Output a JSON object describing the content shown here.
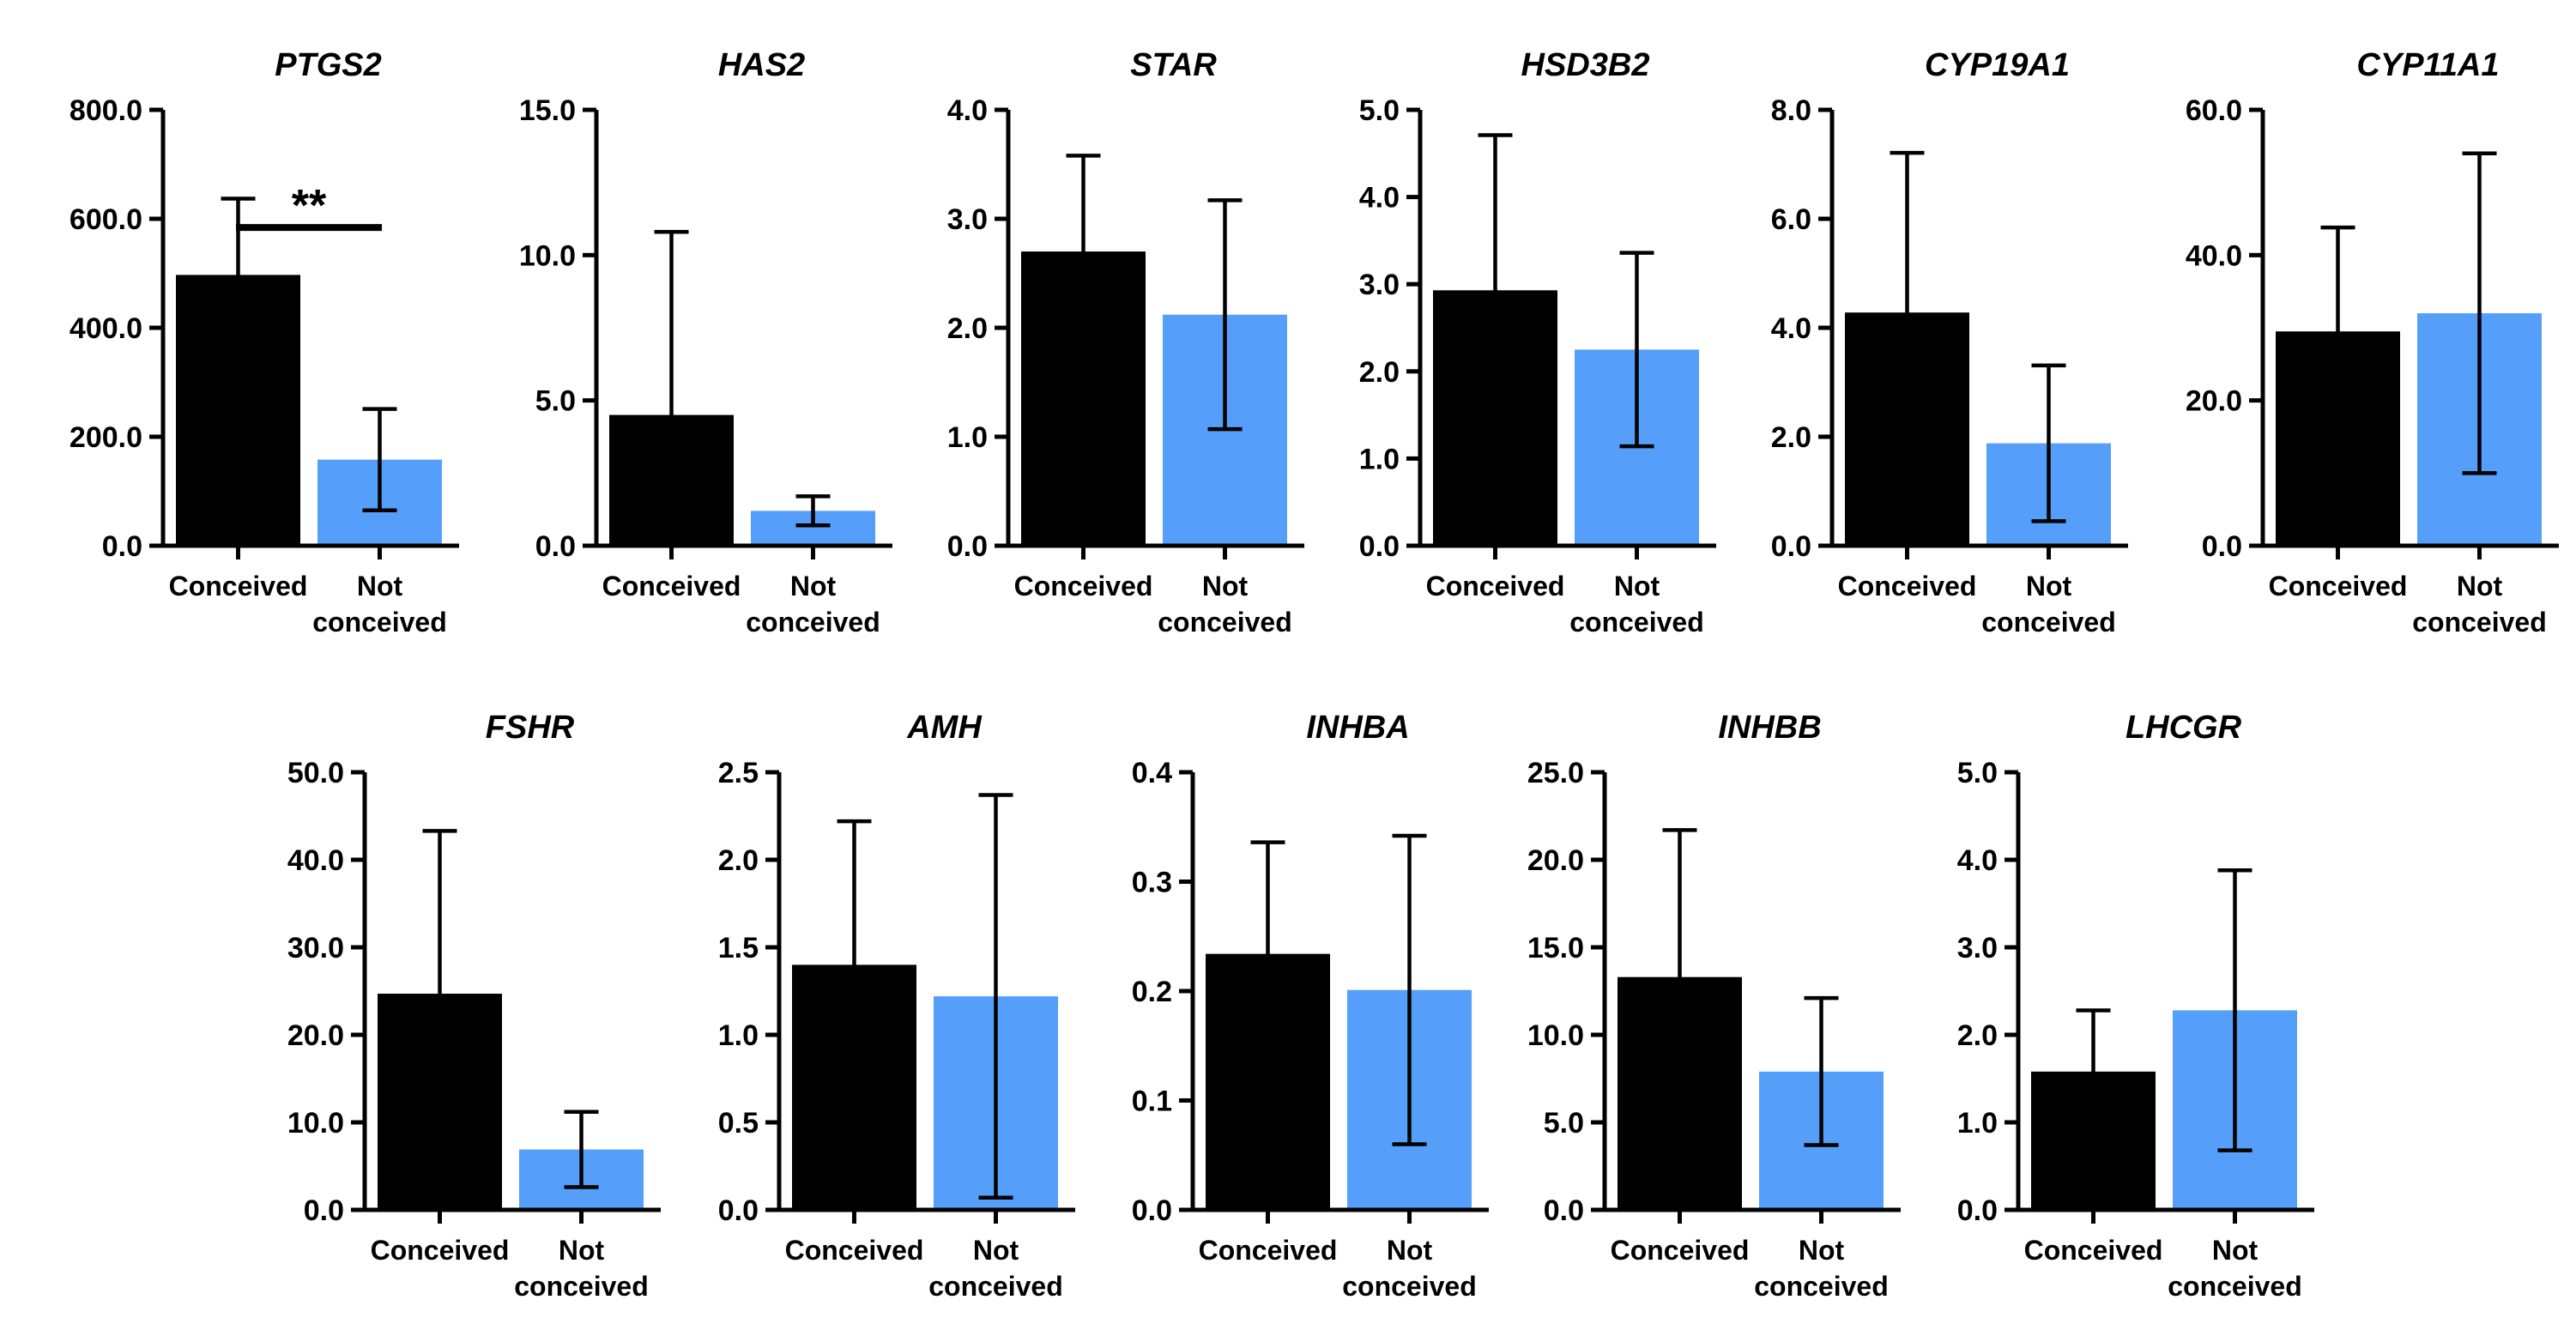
{
  "colors": {
    "conceived": "#000000",
    "not_conceived": "#559ffa"
  },
  "chart_data": [
    {
      "type": "bar",
      "title": "PTGS2",
      "categories": [
        "Conceived",
        "Not|conceived"
      ],
      "series": [
        {
          "values": [
            497,
            158
          ],
          "error": [
            140,
            93
          ]
        }
      ],
      "ylim": [
        0,
        800
      ],
      "yticks": [
        "0.0",
        "200.0",
        "400.0",
        "600.0",
        "800.0"
      ],
      "significance": "**"
    },
    {
      "type": "bar",
      "title": "HAS2",
      "categories": [
        "Conceived",
        "Not|conceived"
      ],
      "series": [
        {
          "values": [
            4.5,
            1.2
          ],
          "error": [
            6.3,
            0.5
          ]
        }
      ],
      "ylim": [
        0,
        15
      ],
      "yticks": [
        "0.0",
        "5.0",
        "10.0",
        "15.0"
      ]
    },
    {
      "type": "bar",
      "title": "STAR",
      "categories": [
        "Conceived",
        "Not|conceived"
      ],
      "series": [
        {
          "values": [
            2.7,
            2.12
          ],
          "error": [
            0.88,
            1.05
          ]
        }
      ],
      "ylim": [
        0,
        4
      ],
      "yticks": [
        "0.0",
        "1.0",
        "2.0",
        "3.0",
        "4.0"
      ]
    },
    {
      "type": "bar",
      "title": "HSD3B2",
      "categories": [
        "Conceived",
        "Not|conceived"
      ],
      "series": [
        {
          "values": [
            2.93,
            2.25
          ],
          "error": [
            1.78,
            1.11
          ]
        }
      ],
      "ylim": [
        0,
        5
      ],
      "yticks": [
        "0.0",
        "1.0",
        "2.0",
        "3.0",
        "4.0",
        "5.0"
      ]
    },
    {
      "type": "bar",
      "title": "CYP19A1",
      "categories": [
        "Conceived",
        "Not|conceived"
      ],
      "series": [
        {
          "values": [
            4.28,
            1.88
          ],
          "error": [
            2.93,
            1.43
          ]
        }
      ],
      "ylim": [
        0,
        8
      ],
      "yticks": [
        "0.0",
        "2.0",
        "4.0",
        "6.0",
        "8.0"
      ]
    },
    {
      "type": "bar",
      "title": "CYP11A1",
      "categories": [
        "Conceived",
        "Not|conceived"
      ],
      "series": [
        {
          "values": [
            29.5,
            32
          ],
          "error": [
            14.3,
            22
          ]
        }
      ],
      "ylim": [
        0,
        60
      ],
      "yticks": [
        "0.0",
        "20.0",
        "40.0",
        "60.0"
      ]
    },
    {
      "type": "bar",
      "title": "FSHR",
      "categories": [
        "Conceived",
        "Not|conceived"
      ],
      "series": [
        {
          "values": [
            24.7,
            6.9
          ],
          "error": [
            18.6,
            4.3
          ]
        }
      ],
      "ylim": [
        0,
        50
      ],
      "yticks": [
        "0.0",
        "10.0",
        "20.0",
        "30.0",
        "40.0",
        "50.0"
      ]
    },
    {
      "type": "bar",
      "title": "AMH",
      "categories": [
        "Conceived",
        "Not|conceived"
      ],
      "series": [
        {
          "values": [
            1.4,
            1.22
          ],
          "error": [
            0.82,
            1.15
          ]
        }
      ],
      "ylim": [
        0,
        2.5
      ],
      "yticks": [
        "0.0",
        "0.5",
        "1.0",
        "1.5",
        "2.0",
        "2.5"
      ]
    },
    {
      "type": "bar",
      "title": "INHBA",
      "categories": [
        "Conceived",
        "Not|conceived"
      ],
      "series": [
        {
          "values": [
            0.234,
            0.201
          ],
          "error": [
            0.102,
            0.141
          ]
        }
      ],
      "ylim": [
        0,
        0.4
      ],
      "yticks": [
        "0.0",
        "0.1",
        "0.2",
        "0.3",
        "0.4"
      ]
    },
    {
      "type": "bar",
      "title": "INHBB",
      "categories": [
        "Conceived",
        "Not|conceived"
      ],
      "series": [
        {
          "values": [
            13.3,
            7.9
          ],
          "error": [
            8.4,
            4.2
          ]
        }
      ],
      "ylim": [
        0,
        25
      ],
      "yticks": [
        "0.0",
        "5.0",
        "10.0",
        "15.0",
        "20.0",
        "25.0"
      ]
    },
    {
      "type": "bar",
      "title": "LHCGR",
      "categories": [
        "Conceived",
        "Not|conceived"
      ],
      "series": [
        {
          "values": [
            1.58,
            2.28
          ],
          "error": [
            0.7,
            1.6
          ]
        }
      ],
      "ylim": [
        0,
        5
      ],
      "yticks": [
        "0.0",
        "1.0",
        "2.0",
        "3.0",
        "4.0",
        "5.0"
      ]
    }
  ]
}
